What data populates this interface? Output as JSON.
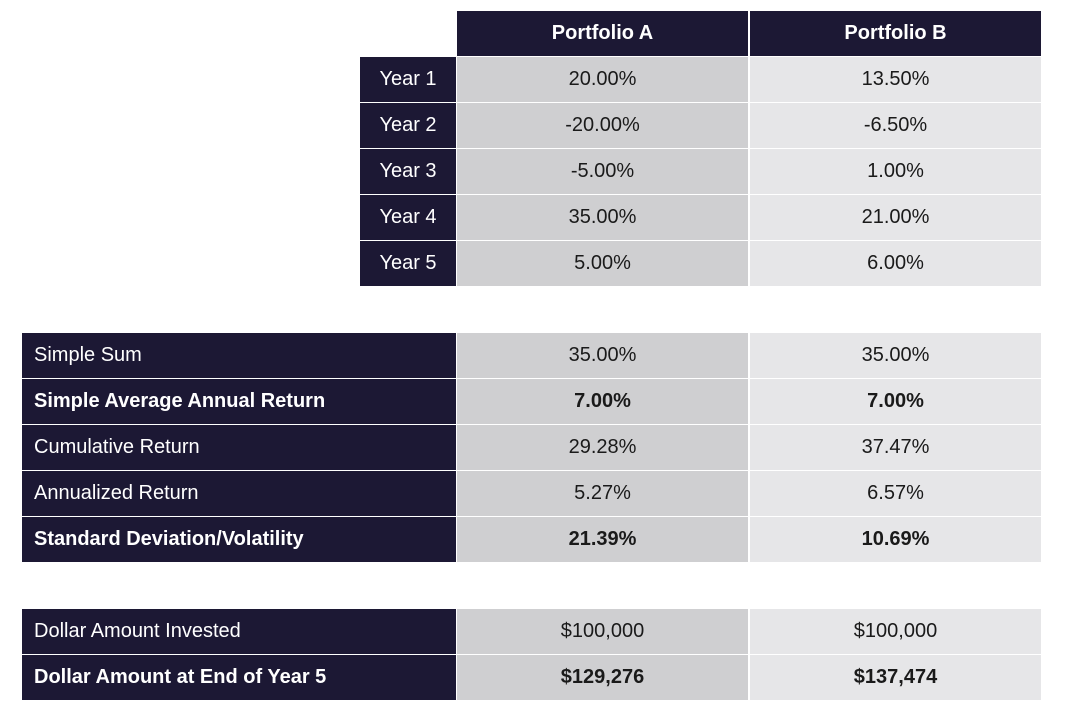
{
  "header": {
    "portfolio_a": "Portfolio A",
    "portfolio_b": "Portfolio B"
  },
  "yearly_returns": [
    {
      "label": "Year 1",
      "a": "20.00%",
      "b": "13.50%"
    },
    {
      "label": "Year 2",
      "a": "-20.00%",
      "b": "-6.50%"
    },
    {
      "label": "Year 3",
      "a": "-5.00%",
      "b": "1.00%"
    },
    {
      "label": "Year 4",
      "a": "35.00%",
      "b": "21.00%"
    },
    {
      "label": "Year 5",
      "a": "5.00%",
      "b": "6.00%"
    }
  ],
  "statistics": [
    {
      "label": "Simple Sum",
      "a": "35.00%",
      "b": "35.00%",
      "bold": false
    },
    {
      "label": "Simple Average Annual Return",
      "a": "7.00%",
      "b": "7.00%",
      "bold": true
    },
    {
      "label": "Cumulative Return",
      "a": "29.28%",
      "b": "37.47%",
      "bold": false
    },
    {
      "label": "Annualized Return",
      "a": "5.27%",
      "b": "6.57%",
      "bold": false
    },
    {
      "label": "Standard Deviation/Volatility",
      "a": "21.39%",
      "b": "10.69%",
      "bold": true
    }
  ],
  "dollar_amounts": [
    {
      "label": "Dollar Amount Invested",
      "a": "$100,000",
      "b": "$100,000",
      "bold": false
    },
    {
      "label": "Dollar Amount at End of Year 5",
      "a": "$129,276",
      "b": "$137,474",
      "bold": true
    }
  ],
  "colors": {
    "header_bg": "#1c1834",
    "portfolio_a_bg": "#cfcfd1",
    "portfolio_b_bg": "#e6e6e8"
  }
}
